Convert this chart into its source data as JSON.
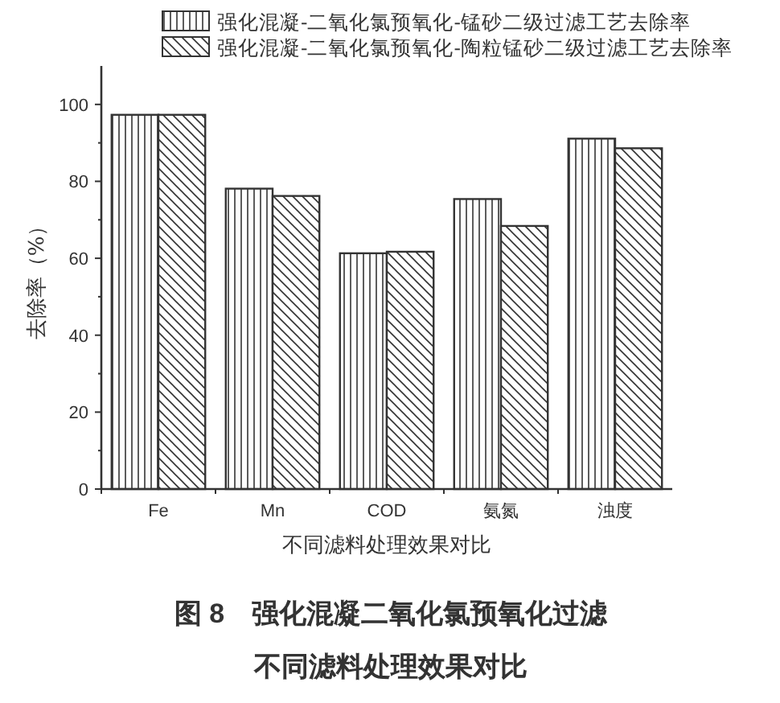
{
  "chart_data": {
    "type": "bar",
    "xlabel": "不同滤料处理效果对比",
    "ylabel": "去除率（%）",
    "categories": [
      "Fe",
      "Mn",
      "COD",
      "氨氮",
      "浊度"
    ],
    "series": [
      {
        "name": "强化混凝-二氧化氯预氧化-锰砂二级过滤工艺去除率",
        "color": "#333333",
        "values": [
          97.3,
          78.1,
          61.3,
          75.4,
          91.1
        ]
      },
      {
        "name": "强化混凝-二氧化氯预氧化-陶粒锰砂二级过滤工艺去除率",
        "color": "#333333",
        "values": [
          97.3,
          76.2,
          61.7,
          68.4,
          88.6
        ]
      }
    ],
    "ylim": [
      0,
      110
    ],
    "yticks": [
      0,
      20,
      40,
      60,
      80,
      100
    ],
    "grid": false,
    "legend": "top",
    "annotations": [
      "图 8　强化混凝二氧化氯预氧化过滤",
      "不同滤料处理效果对比"
    ]
  }
}
